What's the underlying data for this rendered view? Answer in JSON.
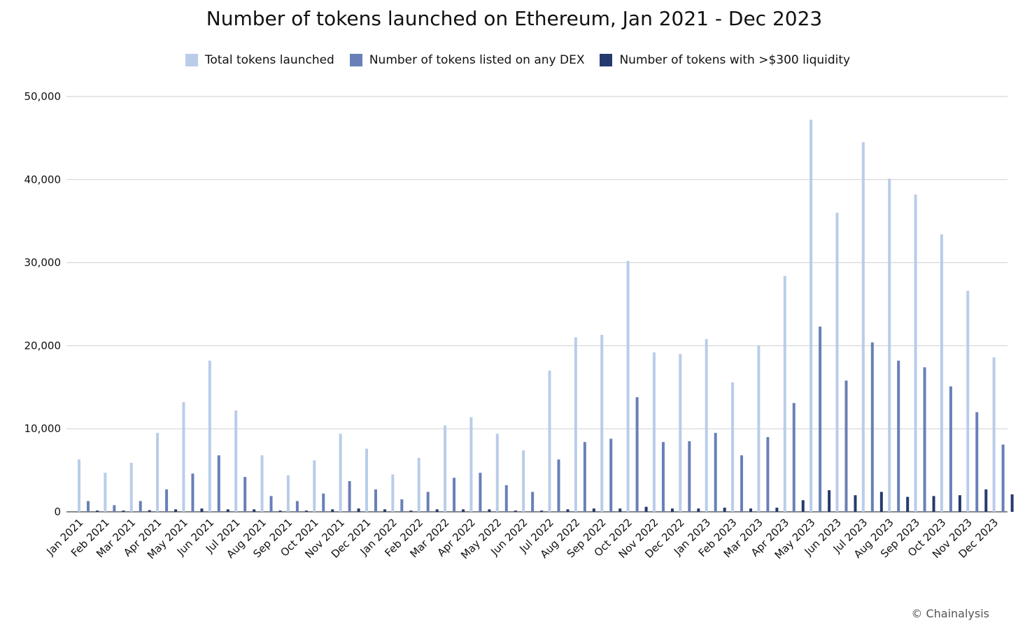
{
  "chart_data": {
    "type": "bar",
    "title": "Number of tokens launched on Ethereum, Jan 2021 - Dec 2023",
    "xlabel": "",
    "ylabel": "",
    "ylim": [
      0,
      50000
    ],
    "yticks": [
      "0",
      "10,000",
      "20,000",
      "30,000",
      "40,000",
      "50,000"
    ],
    "grid": true,
    "legend_position": "top-center",
    "categories": [
      "Jan 2021",
      "Feb 2021",
      "Mar 2021",
      "Apr 2021",
      "May 2021",
      "Jun 2021",
      "Jul 2021",
      "Aug 2021",
      "Sep 2021",
      "Oct 2021",
      "Nov 2021",
      "Dec 2021",
      "Jan 2022",
      "Feb 2022",
      "Mar 2022",
      "Apr 2022",
      "May 2022",
      "Jun 2022",
      "Jul 2022",
      "Aug 2022",
      "Sep 2022",
      "Oct 2022",
      "Nov 2022",
      "Dec 2022",
      "Jan 2023",
      "Feb 2023",
      "Mar 2023",
      "Apr 2023",
      "May 2023",
      "Jun 2023",
      "Jul 2023",
      "Aug 2023",
      "Sep 2023",
      "Oct 2023",
      "Nov 2023",
      "Dec 2023"
    ],
    "series": [
      {
        "name": "Total tokens launched",
        "color": "#b9cde9",
        "values": [
          6300,
          4700,
          5900,
          9500,
          13200,
          18200,
          12200,
          6800,
          4400,
          6200,
          9400,
          7600,
          4500,
          6500,
          10400,
          11400,
          9400,
          7400,
          17000,
          21000,
          21300,
          30200,
          19200,
          19000,
          20800,
          15600,
          20000,
          28400,
          47200,
          36000,
          44500,
          40100,
          38200,
          33400,
          26600,
          18600
        ]
      },
      {
        "name": "Number of tokens listed on any DEX",
        "color": "#6880b7",
        "values": [
          1300,
          800,
          1300,
          2700,
          4600,
          6800,
          4200,
          1900,
          1300,
          2200,
          3700,
          2700,
          1500,
          2400,
          4100,
          4700,
          3200,
          2400,
          6300,
          8400,
          8800,
          13800,
          8400,
          8500,
          9500,
          6800,
          9000,
          13100,
          22300,
          15800,
          20400,
          18200,
          17400,
          15100,
          12000,
          8100
        ]
      },
      {
        "name": "Number of tokens with >$300 liquidity",
        "color": "#253a6e",
        "values": [
          150,
          150,
          200,
          300,
          400,
          300,
          300,
          150,
          150,
          300,
          400,
          300,
          150,
          300,
          300,
          300,
          150,
          150,
          300,
          400,
          400,
          600,
          400,
          400,
          500,
          400,
          500,
          1400,
          2600,
          2000,
          2400,
          1800,
          1900,
          2000,
          2700,
          2100
        ]
      }
    ]
  },
  "source": "© Chainalysis"
}
